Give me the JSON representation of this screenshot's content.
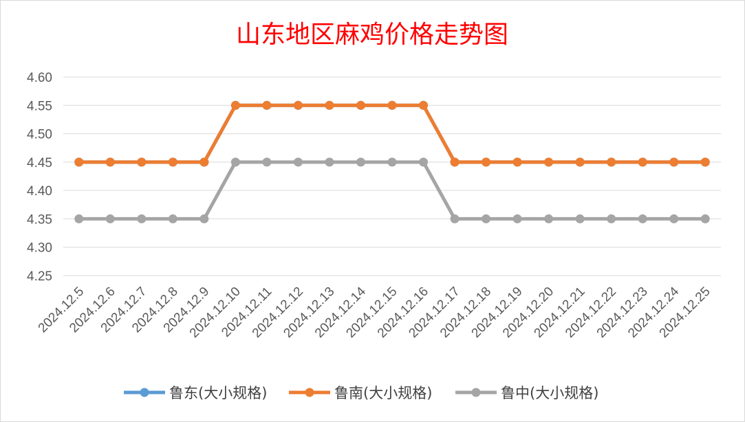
{
  "chart_data": {
    "type": "line",
    "title": "山东地区麻鸡价格走势图",
    "categories": [
      "2024.12.5",
      "2024.12.6",
      "2024.12.7",
      "2024.12.8",
      "2024.12.9",
      "2024.12.10",
      "2024.12.11",
      "2024.12.12",
      "2024.12.13",
      "2024.12.14",
      "2024.12.15",
      "2024.12.16",
      "2024.12.17",
      "2024.12.18",
      "2024.12.19",
      "2024.12.20",
      "2024.12.21",
      "2024.12.22",
      "2024.12.23",
      "2024.12.24",
      "2024.12.25"
    ],
    "yticks": [
      "4.25",
      "4.30",
      "4.35",
      "4.40",
      "4.45",
      "4.50",
      "4.55",
      "4.60"
    ],
    "ylim": [
      4.25,
      4.6
    ],
    "grid": true,
    "legend_position": "bottom",
    "series": [
      {
        "name": "鲁东(大小规格)",
        "color": "#5b9bd5",
        "values": [
          4.45,
          4.45,
          4.45,
          4.45,
          4.45,
          4.55,
          4.55,
          4.55,
          4.55,
          4.55,
          4.55,
          4.55,
          4.45,
          4.45,
          4.45,
          4.45,
          4.45,
          4.45,
          4.45,
          4.45,
          4.45
        ]
      },
      {
        "name": "鲁南(大小规格)",
        "color": "#ed7d31",
        "values": [
          4.45,
          4.45,
          4.45,
          4.45,
          4.45,
          4.55,
          4.55,
          4.55,
          4.55,
          4.55,
          4.55,
          4.55,
          4.45,
          4.45,
          4.45,
          4.45,
          4.45,
          4.45,
          4.45,
          4.45,
          4.45
        ]
      },
      {
        "name": "鲁中(大小规格)",
        "color": "#a5a5a5",
        "values": [
          4.35,
          4.35,
          4.35,
          4.35,
          4.35,
          4.45,
          4.45,
          4.45,
          4.45,
          4.45,
          4.45,
          4.45,
          4.35,
          4.35,
          4.35,
          4.35,
          4.35,
          4.35,
          4.35,
          4.35,
          4.35
        ]
      }
    ]
  }
}
